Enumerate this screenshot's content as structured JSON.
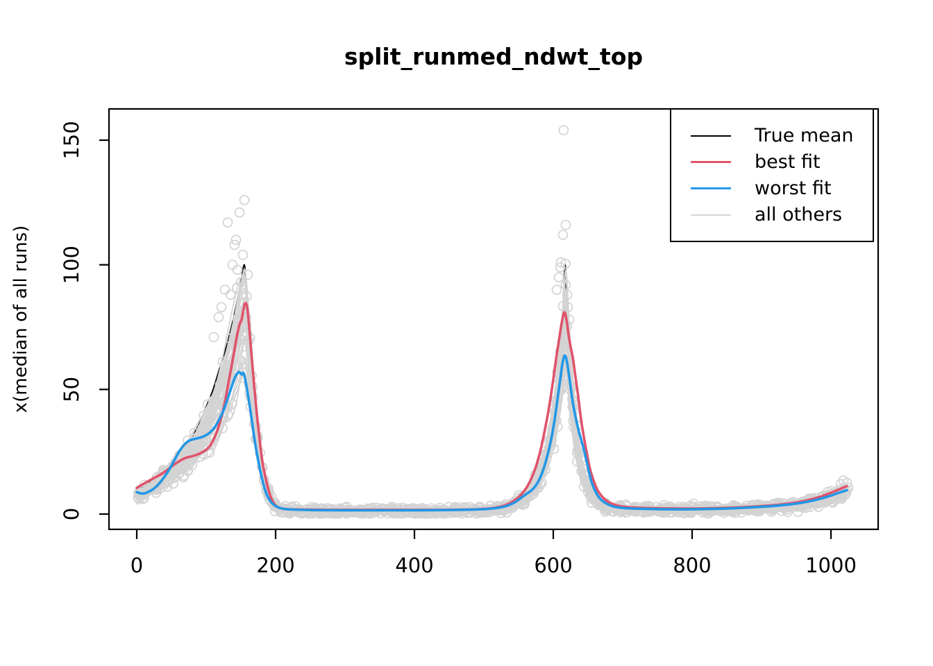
{
  "chart_data": {
    "type": "line",
    "title": "split_runmed_ndwt_top",
    "xlabel": "",
    "ylabel": "x(median of all runs)",
    "x_ticks": [
      0,
      200,
      400,
      600,
      800,
      1000
    ],
    "y_ticks": [
      0,
      50,
      100,
      150
    ],
    "xlim": [
      -40,
      1068
    ],
    "ylim": [
      -6,
      162.5
    ],
    "grid": false,
    "legend": {
      "position": "top-right",
      "entries": [
        {
          "label": "True mean",
          "color": "#000000",
          "line_width": 2
        },
        {
          "label": "best fit",
          "color": "#DF536B",
          "line_width": 3
        },
        {
          "label": "worst fit",
          "color": "#2297E6",
          "line_width": 3
        },
        {
          "label": "all others",
          "color": "#D3D3D3",
          "line_width": 2
        }
      ]
    },
    "series": [
      {
        "name": "True mean",
        "color": "#000000",
        "width": 2,
        "points": [
          [
            0,
            9.5
          ],
          [
            15,
            12
          ],
          [
            30,
            15
          ],
          [
            45,
            19
          ],
          [
            60,
            24
          ],
          [
            75,
            29
          ],
          [
            88,
            35
          ],
          [
            100,
            43
          ],
          [
            110,
            50
          ],
          [
            120,
            59
          ],
          [
            130,
            68
          ],
          [
            138,
            77
          ],
          [
            145,
            86
          ],
          [
            150,
            93
          ],
          [
            155,
            100
          ],
          [
            158,
            91
          ],
          [
            162,
            77
          ],
          [
            166,
            62
          ],
          [
            171,
            46
          ],
          [
            176,
            32
          ],
          [
            181,
            21
          ],
          [
            187,
            13
          ],
          [
            193,
            7
          ],
          [
            199,
            3.8
          ],
          [
            206,
            2.4
          ],
          [
            215,
            1.8
          ],
          [
            230,
            1.6
          ],
          [
            260,
            1.5
          ],
          [
            300,
            1.5
          ],
          [
            350,
            1.5
          ],
          [
            400,
            1.5
          ],
          [
            450,
            1.5
          ],
          [
            480,
            1.6
          ],
          [
            500,
            1.8
          ],
          [
            515,
            2.2
          ],
          [
            530,
            3
          ],
          [
            543,
            4.5
          ],
          [
            554,
            6.5
          ],
          [
            563,
            9
          ],
          [
            571,
            12.5
          ],
          [
            578,
            17
          ],
          [
            585,
            23
          ],
          [
            591,
            30
          ],
          [
            597,
            39
          ],
          [
            603,
            50
          ],
          [
            608,
            62
          ],
          [
            612,
            74
          ],
          [
            615,
            87
          ],
          [
            617,
            100
          ],
          [
            619,
            88
          ],
          [
            622,
            74
          ],
          [
            626,
            58
          ],
          [
            631,
            43
          ],
          [
            636,
            31
          ],
          [
            642,
            21
          ],
          [
            648,
            14
          ],
          [
            655,
            9
          ],
          [
            662,
            6
          ],
          [
            670,
            4.2
          ],
          [
            680,
            3.2
          ],
          [
            692,
            2.6
          ],
          [
            710,
            2.3
          ],
          [
            740,
            2.1
          ],
          [
            780,
            2
          ],
          [
            820,
            2.1
          ],
          [
            860,
            2.4
          ],
          [
            895,
            2.9
          ],
          [
            925,
            3.6
          ],
          [
            950,
            4.5
          ],
          [
            970,
            5.6
          ],
          [
            988,
            7
          ],
          [
            1002,
            8.3
          ],
          [
            1013,
            9.4
          ],
          [
            1023,
            10.3
          ]
        ]
      },
      {
        "name": "best fit",
        "color": "#DF536B",
        "width": 3.6,
        "points": [
          [
            0,
            10.5
          ],
          [
            12,
            12.5
          ],
          [
            25,
            14.5
          ],
          [
            38,
            16.5
          ],
          [
            50,
            19
          ],
          [
            60,
            21
          ],
          [
            70,
            22.5
          ],
          [
            80,
            23.2
          ],
          [
            90,
            24.2
          ],
          [
            100,
            25.8
          ],
          [
            107,
            28
          ],
          [
            114,
            32
          ],
          [
            121,
            38
          ],
          [
            127,
            45
          ],
          [
            133,
            54
          ],
          [
            139,
            63
          ],
          [
            144,
            71
          ],
          [
            148,
            76
          ],
          [
            151,
            78
          ],
          [
            153,
            81
          ],
          [
            156,
            84.5
          ],
          [
            159,
            83
          ],
          [
            162,
            75
          ],
          [
            165,
            65
          ],
          [
            169,
            52
          ],
          [
            173,
            40
          ],
          [
            177,
            30
          ],
          [
            181,
            21
          ],
          [
            186,
            14
          ],
          [
            191,
            8.5
          ],
          [
            196,
            5
          ],
          [
            202,
            3
          ],
          [
            210,
            2.2
          ],
          [
            222,
            1.9
          ],
          [
            245,
            1.8
          ],
          [
            280,
            1.7
          ],
          [
            320,
            1.7
          ],
          [
            360,
            1.7
          ],
          [
            400,
            1.7
          ],
          [
            440,
            1.7
          ],
          [
            470,
            1.8
          ],
          [
            495,
            2
          ],
          [
            512,
            2.4
          ],
          [
            527,
            3.2
          ],
          [
            540,
            4.8
          ],
          [
            551,
            7
          ],
          [
            560,
            10
          ],
          [
            568,
            14
          ],
          [
            575,
            19
          ],
          [
            582,
            26
          ],
          [
            588,
            34
          ],
          [
            594,
            43
          ],
          [
            600,
            54
          ],
          [
            605,
            64
          ],
          [
            610,
            73
          ],
          [
            613,
            78
          ],
          [
            616,
            81
          ],
          [
            619,
            78
          ],
          [
            622,
            72
          ],
          [
            625,
            67
          ],
          [
            628,
            63
          ],
          [
            632,
            55
          ],
          [
            636,
            47
          ],
          [
            640,
            38
          ],
          [
            644,
            31
          ],
          [
            648,
            25
          ],
          [
            653,
            18
          ],
          [
            658,
            13.5
          ],
          [
            663,
            10
          ],
          [
            669,
            7.5
          ],
          [
            676,
            5.5
          ],
          [
            684,
            4.2
          ],
          [
            694,
            3.3
          ],
          [
            706,
            2.8
          ],
          [
            725,
            2.5
          ],
          [
            755,
            2.3
          ],
          [
            790,
            2.2
          ],
          [
            825,
            2.3
          ],
          [
            858,
            2.6
          ],
          [
            890,
            3
          ],
          [
            920,
            3.6
          ],
          [
            944,
            4.4
          ],
          [
            962,
            5.3
          ],
          [
            978,
            6.4
          ],
          [
            993,
            7.8
          ],
          [
            1006,
            9.2
          ],
          [
            1016,
            10.4
          ],
          [
            1023,
            11.2
          ]
        ]
      },
      {
        "name": "worst fit",
        "color": "#2297E6",
        "width": 3.6,
        "points": [
          [
            0,
            8.8
          ],
          [
            8,
            8.2
          ],
          [
            16,
            8.8
          ],
          [
            26,
            10.5
          ],
          [
            36,
            13.5
          ],
          [
            46,
            17.5
          ],
          [
            54,
            21.5
          ],
          [
            62,
            25.5
          ],
          [
            69,
            28
          ],
          [
            76,
            29.5
          ],
          [
            84,
            30.2
          ],
          [
            93,
            30.8
          ],
          [
            102,
            32
          ],
          [
            110,
            34
          ],
          [
            117,
            37
          ],
          [
            124,
            41
          ],
          [
            130,
            45.5
          ],
          [
            136,
            50.5
          ],
          [
            141,
            54.5
          ],
          [
            145,
            56.5
          ],
          [
            148,
            57
          ],
          [
            151,
            56
          ],
          [
            154,
            56.5
          ],
          [
            157,
            53
          ],
          [
            160,
            48
          ],
          [
            164,
            41
          ],
          [
            168,
            33
          ],
          [
            172,
            26
          ],
          [
            177,
            18.5
          ],
          [
            182,
            12.5
          ],
          [
            187,
            8
          ],
          [
            193,
            5
          ],
          [
            200,
            3.2
          ],
          [
            210,
            2.2
          ],
          [
            225,
            1.8
          ],
          [
            255,
            1.6
          ],
          [
            300,
            1.5
          ],
          [
            350,
            1.5
          ],
          [
            400,
            1.5
          ],
          [
            440,
            1.6
          ],
          [
            470,
            1.7
          ],
          [
            495,
            1.9
          ],
          [
            515,
            2.3
          ],
          [
            532,
            3.2
          ],
          [
            545,
            4.8
          ],
          [
            555,
            6.8
          ],
          [
            562,
            8.2
          ],
          [
            569,
            9.6
          ],
          [
            575,
            11.5
          ],
          [
            581,
            14.5
          ],
          [
            587,
            19
          ],
          [
            592,
            24
          ],
          [
            597,
            30
          ],
          [
            602,
            38
          ],
          [
            606,
            46
          ],
          [
            610,
            54
          ],
          [
            613,
            60
          ],
          [
            616,
            63.5
          ],
          [
            619,
            62
          ],
          [
            622,
            57
          ],
          [
            625,
            51
          ],
          [
            628,
            45
          ],
          [
            631,
            40.5
          ],
          [
            634,
            36.5
          ],
          [
            637,
            33
          ],
          [
            640,
            30
          ],
          [
            643,
            27
          ],
          [
            647,
            22.5
          ],
          [
            651,
            17.5
          ],
          [
            655,
            13
          ],
          [
            660,
            9.5
          ],
          [
            665,
            7
          ],
          [
            671,
            5.2
          ],
          [
            678,
            4
          ],
          [
            687,
            3
          ],
          [
            698,
            2.5
          ],
          [
            715,
            2.2
          ],
          [
            745,
            2
          ],
          [
            780,
            1.9
          ],
          [
            815,
            2
          ],
          [
            848,
            2.2
          ],
          [
            880,
            2.6
          ],
          [
            910,
            3.1
          ],
          [
            935,
            3.7
          ],
          [
            955,
            4.4
          ],
          [
            972,
            5.3
          ],
          [
            988,
            6.4
          ],
          [
            1001,
            7.5
          ],
          [
            1012,
            8.6
          ],
          [
            1023,
            9.6
          ]
        ]
      }
    ],
    "others": {
      "label": "all others",
      "line_color": "#D3D3D3",
      "marker": "open-circle",
      "marker_color": "#D3D3D3",
      "marker_radius_px": 6.5,
      "run_count": 34,
      "runs_with_markers": 26,
      "seed": 20240715,
      "amplitude_range": [
        0.58,
        1.0
      ],
      "offset_range": [
        -0.8,
        0.8
      ],
      "outlier_points": [
        [
          131,
          117
        ],
        [
          155,
          126
        ],
        [
          148,
          121
        ],
        [
          143,
          110
        ],
        [
          141,
          108
        ],
        [
          153,
          104
        ],
        [
          138,
          100
        ],
        [
          145,
          98
        ],
        [
          160,
          96
        ],
        [
          150,
          93
        ],
        [
          127,
          90
        ],
        [
          135,
          88
        ],
        [
          122,
          83
        ],
        [
          118,
          79
        ],
        [
          111,
          71
        ],
        [
          615,
          154
        ],
        [
          618,
          116
        ],
        [
          614,
          112
        ],
        [
          611,
          101
        ],
        [
          610,
          99
        ],
        [
          618,
          92
        ],
        [
          620,
          88
        ],
        [
          621,
          83
        ],
        [
          608,
          95
        ],
        [
          605,
          90
        ],
        [
          623,
          78
        ],
        [
          1018,
          13.5
        ],
        [
          1023,
          12.5
        ],
        [
          1014,
          12
        ],
        [
          1025,
          10.5
        ]
      ]
    }
  }
}
